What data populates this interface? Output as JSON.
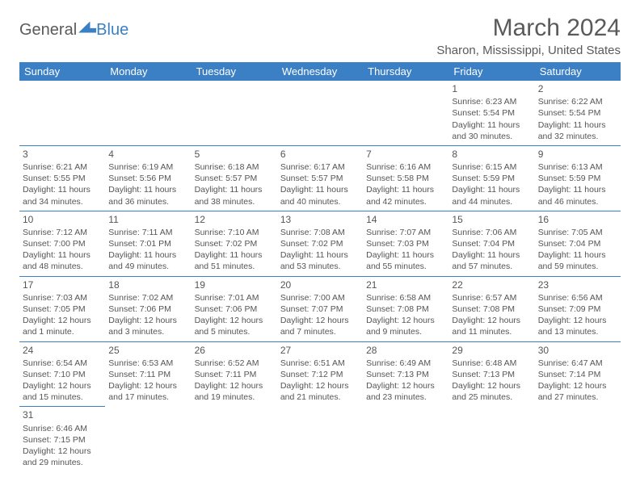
{
  "logo": {
    "part1": "General",
    "part2": "Blue"
  },
  "title": "March 2024",
  "location": "Sharon, Mississippi, United States",
  "colors": {
    "header_bg": "#3b7fc4",
    "text": "#5a5a5a",
    "cell_border": "#3b7fc4"
  },
  "day_headers": [
    "Sunday",
    "Monday",
    "Tuesday",
    "Wednesday",
    "Thursday",
    "Friday",
    "Saturday"
  ],
  "weeks": [
    [
      null,
      null,
      null,
      null,
      null,
      {
        "n": "1",
        "sr": "Sunrise: 6:23 AM",
        "ss": "Sunset: 5:54 PM",
        "dl": "Daylight: 11 hours and 30 minutes."
      },
      {
        "n": "2",
        "sr": "Sunrise: 6:22 AM",
        "ss": "Sunset: 5:54 PM",
        "dl": "Daylight: 11 hours and 32 minutes."
      }
    ],
    [
      {
        "n": "3",
        "sr": "Sunrise: 6:21 AM",
        "ss": "Sunset: 5:55 PM",
        "dl": "Daylight: 11 hours and 34 minutes."
      },
      {
        "n": "4",
        "sr": "Sunrise: 6:19 AM",
        "ss": "Sunset: 5:56 PM",
        "dl": "Daylight: 11 hours and 36 minutes."
      },
      {
        "n": "5",
        "sr": "Sunrise: 6:18 AM",
        "ss": "Sunset: 5:57 PM",
        "dl": "Daylight: 11 hours and 38 minutes."
      },
      {
        "n": "6",
        "sr": "Sunrise: 6:17 AM",
        "ss": "Sunset: 5:57 PM",
        "dl": "Daylight: 11 hours and 40 minutes."
      },
      {
        "n": "7",
        "sr": "Sunrise: 6:16 AM",
        "ss": "Sunset: 5:58 PM",
        "dl": "Daylight: 11 hours and 42 minutes."
      },
      {
        "n": "8",
        "sr": "Sunrise: 6:15 AM",
        "ss": "Sunset: 5:59 PM",
        "dl": "Daylight: 11 hours and 44 minutes."
      },
      {
        "n": "9",
        "sr": "Sunrise: 6:13 AM",
        "ss": "Sunset: 5:59 PM",
        "dl": "Daylight: 11 hours and 46 minutes."
      }
    ],
    [
      {
        "n": "10",
        "sr": "Sunrise: 7:12 AM",
        "ss": "Sunset: 7:00 PM",
        "dl": "Daylight: 11 hours and 48 minutes."
      },
      {
        "n": "11",
        "sr": "Sunrise: 7:11 AM",
        "ss": "Sunset: 7:01 PM",
        "dl": "Daylight: 11 hours and 49 minutes."
      },
      {
        "n": "12",
        "sr": "Sunrise: 7:10 AM",
        "ss": "Sunset: 7:02 PM",
        "dl": "Daylight: 11 hours and 51 minutes."
      },
      {
        "n": "13",
        "sr": "Sunrise: 7:08 AM",
        "ss": "Sunset: 7:02 PM",
        "dl": "Daylight: 11 hours and 53 minutes."
      },
      {
        "n": "14",
        "sr": "Sunrise: 7:07 AM",
        "ss": "Sunset: 7:03 PM",
        "dl": "Daylight: 11 hours and 55 minutes."
      },
      {
        "n": "15",
        "sr": "Sunrise: 7:06 AM",
        "ss": "Sunset: 7:04 PM",
        "dl": "Daylight: 11 hours and 57 minutes."
      },
      {
        "n": "16",
        "sr": "Sunrise: 7:05 AM",
        "ss": "Sunset: 7:04 PM",
        "dl": "Daylight: 11 hours and 59 minutes."
      }
    ],
    [
      {
        "n": "17",
        "sr": "Sunrise: 7:03 AM",
        "ss": "Sunset: 7:05 PM",
        "dl": "Daylight: 12 hours and 1 minute."
      },
      {
        "n": "18",
        "sr": "Sunrise: 7:02 AM",
        "ss": "Sunset: 7:06 PM",
        "dl": "Daylight: 12 hours and 3 minutes."
      },
      {
        "n": "19",
        "sr": "Sunrise: 7:01 AM",
        "ss": "Sunset: 7:06 PM",
        "dl": "Daylight: 12 hours and 5 minutes."
      },
      {
        "n": "20",
        "sr": "Sunrise: 7:00 AM",
        "ss": "Sunset: 7:07 PM",
        "dl": "Daylight: 12 hours and 7 minutes."
      },
      {
        "n": "21",
        "sr": "Sunrise: 6:58 AM",
        "ss": "Sunset: 7:08 PM",
        "dl": "Daylight: 12 hours and 9 minutes."
      },
      {
        "n": "22",
        "sr": "Sunrise: 6:57 AM",
        "ss": "Sunset: 7:08 PM",
        "dl": "Daylight: 12 hours and 11 minutes."
      },
      {
        "n": "23",
        "sr": "Sunrise: 6:56 AM",
        "ss": "Sunset: 7:09 PM",
        "dl": "Daylight: 12 hours and 13 minutes."
      }
    ],
    [
      {
        "n": "24",
        "sr": "Sunrise: 6:54 AM",
        "ss": "Sunset: 7:10 PM",
        "dl": "Daylight: 12 hours and 15 minutes."
      },
      {
        "n": "25",
        "sr": "Sunrise: 6:53 AM",
        "ss": "Sunset: 7:11 PM",
        "dl": "Daylight: 12 hours and 17 minutes."
      },
      {
        "n": "26",
        "sr": "Sunrise: 6:52 AM",
        "ss": "Sunset: 7:11 PM",
        "dl": "Daylight: 12 hours and 19 minutes."
      },
      {
        "n": "27",
        "sr": "Sunrise: 6:51 AM",
        "ss": "Sunset: 7:12 PM",
        "dl": "Daylight: 12 hours and 21 minutes."
      },
      {
        "n": "28",
        "sr": "Sunrise: 6:49 AM",
        "ss": "Sunset: 7:13 PM",
        "dl": "Daylight: 12 hours and 23 minutes."
      },
      {
        "n": "29",
        "sr": "Sunrise: 6:48 AM",
        "ss": "Sunset: 7:13 PM",
        "dl": "Daylight: 12 hours and 25 minutes."
      },
      {
        "n": "30",
        "sr": "Sunrise: 6:47 AM",
        "ss": "Sunset: 7:14 PM",
        "dl": "Daylight: 12 hours and 27 minutes."
      }
    ],
    [
      {
        "n": "31",
        "sr": "Sunrise: 6:46 AM",
        "ss": "Sunset: 7:15 PM",
        "dl": "Daylight: 12 hours and 29 minutes."
      },
      null,
      null,
      null,
      null,
      null,
      null
    ]
  ]
}
